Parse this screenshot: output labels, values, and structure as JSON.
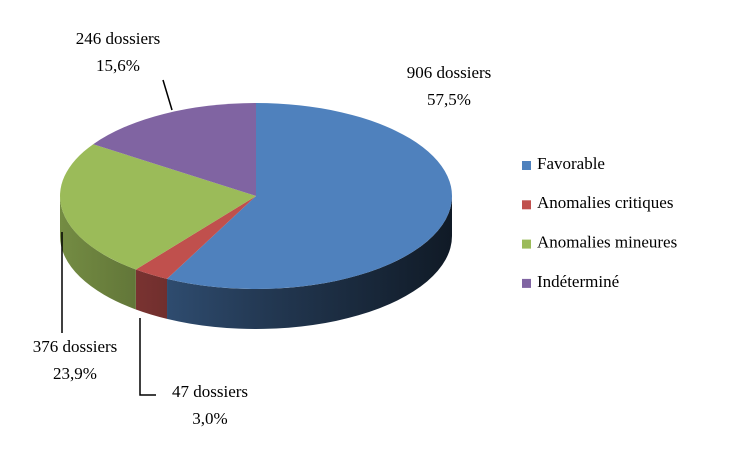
{
  "chart_data": {
    "type": "pie3d",
    "categories": [
      "Favorable",
      "Anomalies critiques",
      "Anomalies mineures",
      "Indéterminé"
    ],
    "values": [
      57.5,
      3.0,
      23.9,
      15.6
    ],
    "value_labels": [
      "57,5%",
      "3,0%",
      "23,9%",
      "15,6%"
    ],
    "count_labels": [
      "906 dossiers",
      "47 dossiers",
      "376 dossiers",
      "246 dossiers"
    ],
    "colors": [
      "#4f81bd",
      "#c0504d",
      "#9bbb59",
      "#8064a2"
    ],
    "legend": "right"
  }
}
